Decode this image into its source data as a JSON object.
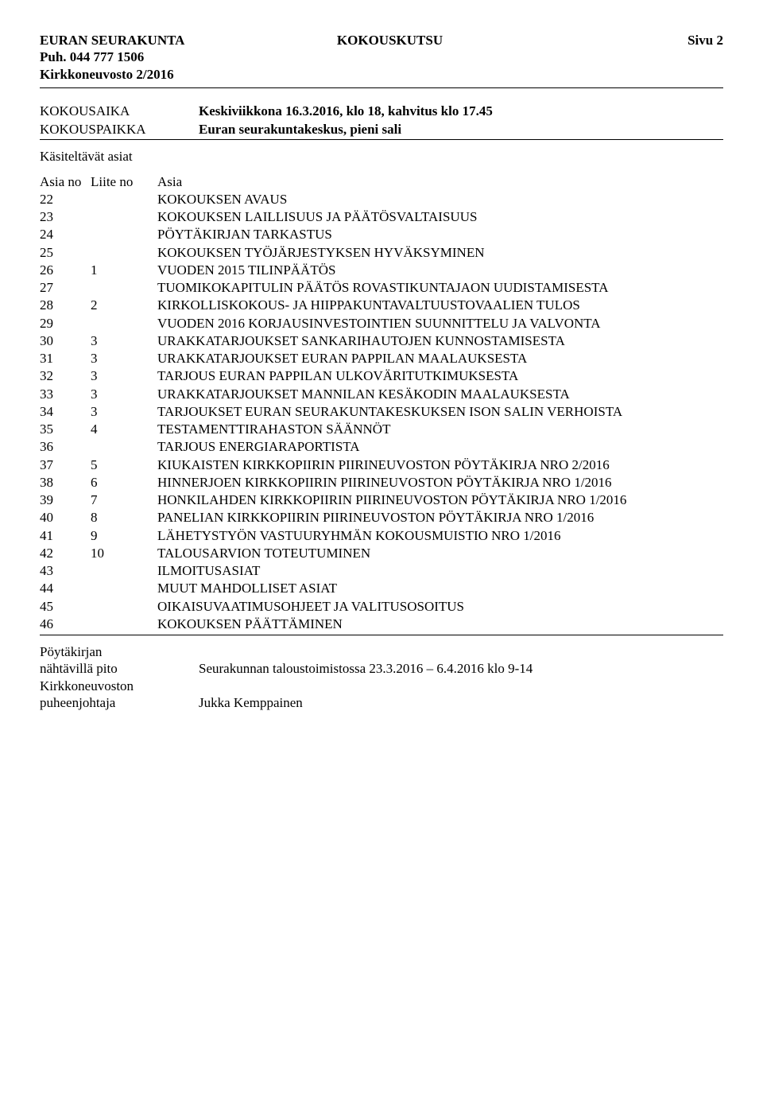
{
  "header": {
    "org": "EURAN SEURAKUNTA",
    "doc_type": "KOKOUSKUTSU",
    "page": "Sivu 2",
    "phone": "Puh. 044 777 1506",
    "board": "Kirkkoneuvosto 2/2016"
  },
  "meeting": {
    "time_label": "KOKOUSAIKA",
    "time_value": "Keskiviikkona 16.3.2016, klo 18, kahvitus klo 17.45",
    "place_label": "KOKOUSPAIKKA",
    "place_value": "Euran seurakuntakeskus, pieni sali"
  },
  "subject_heading": "Käsiteltävät asiat",
  "columns": {
    "asia_no": "Asia no",
    "liite_no": "Liite no",
    "asia": "Asia"
  },
  "items": [
    {
      "no": "22",
      "liite": "",
      "text": "KOKOUKSEN AVAUS"
    },
    {
      "no": "23",
      "liite": "",
      "text": "KOKOUKSEN LAILLISUUS JA PÄÄTÖSVALTAISUUS"
    },
    {
      "no": "24",
      "liite": "",
      "text": "PÖYTÄKIRJAN TARKASTUS"
    },
    {
      "no": "25",
      "liite": "",
      "text": "KOKOUKSEN TYÖJÄRJESTYKSEN HYVÄKSYMINEN"
    },
    {
      "no": "26",
      "liite": "1",
      "text": "VUODEN 2015 TILINPÄÄTÖS"
    },
    {
      "no": "27",
      "liite": "",
      "text": "TUOMIKOKAPITULIN PÄÄTÖS ROVASTIKUNTAJAON UUDISTAMISESTA"
    },
    {
      "no": "28",
      "liite": "2",
      "text": "KIRKOLLISKOKOUS- JA HIIPPAKUNTAVALTUUSTOVAALIEN TULOS"
    },
    {
      "no": "29",
      "liite": "",
      "text": "VUODEN 2016 KORJAUSINVESTOINTIEN SUUNNITTELU JA VALVONTA"
    },
    {
      "no": "30",
      "liite": "3",
      "text": "URAKKATARJOUKSET SANKARIHAUTOJEN KUNNOSTAMISESTA"
    },
    {
      "no": "31",
      "liite": "3",
      "text": "URAKKATARJOUKSET EURAN PAPPILAN MAALAUKSESTA"
    },
    {
      "no": "32",
      "liite": "3",
      "text": "TARJOUS EURAN PAPPILAN ULKOVÄRITUTKIMUKSESTA"
    },
    {
      "no": "33",
      "liite": "3",
      "text": "URAKKATARJOUKSET MANNILAN KESÄKODIN MAALAUKSESTA"
    },
    {
      "no": "34",
      "liite": "3",
      "text": "TARJOUKSET EURAN SEURAKUNTAKESKUKSEN ISON SALIN VERHOISTA"
    },
    {
      "no": "35",
      "liite": "4",
      "text": "TESTAMENTTIRAHASTON SÄÄNNÖT"
    },
    {
      "no": "36",
      "liite": "",
      "text": "TARJOUS ENERGIARAPORTISTA"
    },
    {
      "no": "37",
      "liite": "5",
      "text": "KIUKAISTEN KIRKKOPIIRIN PIIRINEUVOSTON PÖYTÄKIRJA NRO 2/2016"
    },
    {
      "no": "38",
      "liite": "6",
      "text": "HINNERJOEN KIRKKOPIIRIN PIIRINEUVOSTON PÖYTÄKIRJA NRO 1/2016"
    },
    {
      "no": "39",
      "liite": "7",
      "text": "HONKILAHDEN KIRKKOPIIRIN PIIRINEUVOSTON PÖYTÄKIRJA NRO 1/2016"
    },
    {
      "no": "40",
      "liite": "8",
      "text": "PANELIAN KIRKKOPIIRIN PIIRINEUVOSTON PÖYTÄKIRJA NRO 1/2016"
    },
    {
      "no": "41",
      "liite": "9",
      "text": "LÄHETYSTYÖN VASTUURYHMÄN KOKOUSMUISTIO NRO 1/2016"
    },
    {
      "no": "42",
      "liite": "10",
      "text": "TALOUSARVION TOTEUTUMINEN"
    },
    {
      "no": "43",
      "liite": "",
      "text": "ILMOITUSASIAT"
    },
    {
      "no": "44",
      "liite": "",
      "text": "MUUT MAHDOLLISET ASIAT"
    },
    {
      "no": "45",
      "liite": "",
      "text": "OIKAISUVAATIMUSOHJEET JA VALITUSOSOITUS"
    },
    {
      "no": "46",
      "liite": "",
      "text": "KOKOUKSEN PÄÄTTÄMINEN"
    }
  ],
  "footer": {
    "minutes_label1": "Pöytäkirjan",
    "minutes_label2": "nähtävillä pito",
    "minutes_value": "Seurakunnan taloustoimistossa 23.3.2016 – 6.4.2016 klo 9-14",
    "chair_label1": "Kirkkoneuvoston",
    "chair_label2": "puheenjohtaja",
    "chair_value": "Jukka Kemppainen"
  }
}
